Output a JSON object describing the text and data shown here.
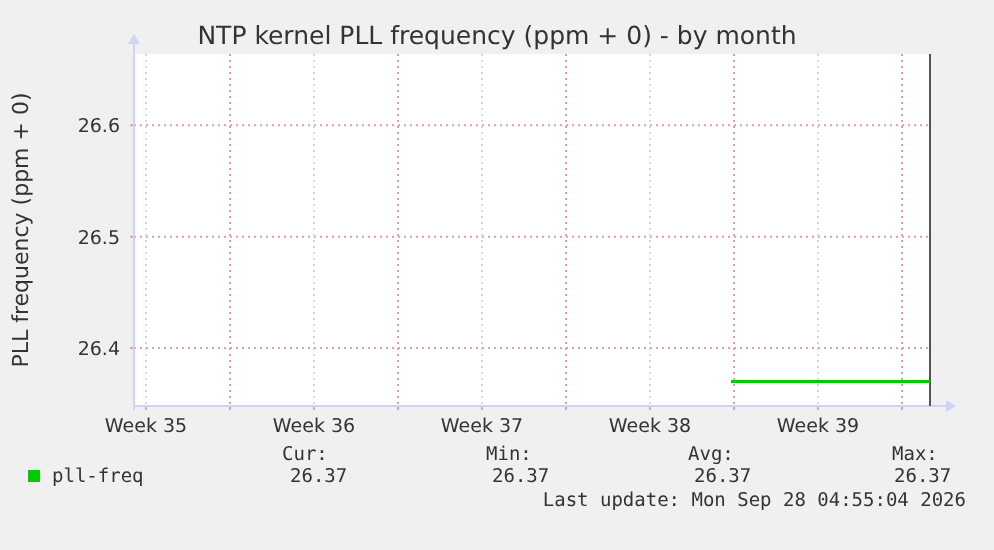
{
  "chart_data": {
    "type": "line",
    "title": "NTP kernel PLL frequency (ppm + 0) - by month",
    "ylabel": "PLL frequency (ppm + 0)",
    "xlim": [
      "2026-08-27T00:00",
      "2026-09-29T04:00"
    ],
    "xticks": [
      {
        "value": "2026-08-27T12:00",
        "label": "Week 35"
      },
      {
        "value": "2026-08-31T00:00",
        "label": null
      },
      {
        "value": "2026-09-03T12:00",
        "label": "Week 36"
      },
      {
        "value": "2026-09-07T00:00",
        "label": null
      },
      {
        "value": "2026-09-10T12:00",
        "label": "Week 37"
      },
      {
        "value": "2026-09-14T00:00",
        "label": null
      },
      {
        "value": "2026-09-17T12:00",
        "label": "Week 38"
      },
      {
        "value": "2026-09-21T00:00",
        "label": null
      },
      {
        "value": "2026-09-24T12:00",
        "label": "Week 39"
      },
      {
        "value": "2026-09-28T00:00",
        "label": null
      }
    ],
    "ylim": [
      26.348,
      26.664
    ],
    "yticks": [
      26.4,
      26.5,
      26.6
    ],
    "grid": true,
    "legend": "bottom",
    "series": [
      {
        "name": "pll-freq",
        "color": "#00cc00",
        "x": [
          "2026-09-20T21:00",
          "2026-09-29T04:00"
        ],
        "values": [
          26.37,
          26.37
        ]
      }
    ],
    "annotations": [
      "Cur:",
      "Min:",
      "Avg:",
      "Max:",
      "26.37",
      "26.37",
      "26.37",
      "26.37",
      "Last update: Mon Sep 28 04:55:04 2026"
    ]
  }
}
